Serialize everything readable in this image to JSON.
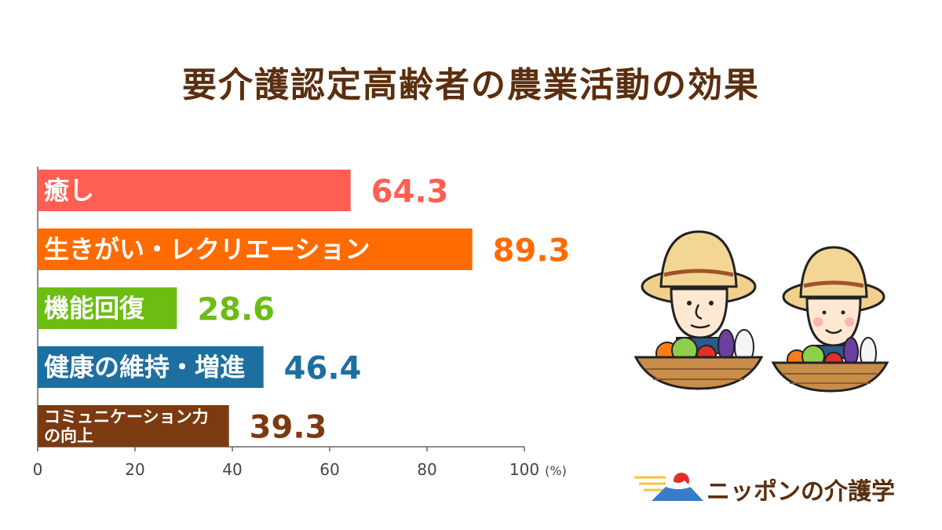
{
  "title": "要介護認定高齢者の農業活動の効果",
  "chart_data": {
    "type": "bar",
    "orientation": "horizontal",
    "categories": [
      [
        "癒し"
      ],
      [
        "生きがい・レクリエーション"
      ],
      [
        "機能回復"
      ],
      [
        "健康の維持・増進"
      ],
      [
        "コミュニケーション力",
        "の向上"
      ]
    ],
    "values": [
      64.3,
      89.3,
      28.6,
      46.4,
      39.3
    ],
    "value_labels": [
      "64.3",
      "89.3",
      "28.6",
      "46.4",
      "39.3"
    ],
    "colors": [
      "#ff5f52",
      "#ff6b00",
      "#6cbd12",
      "#1d6fa0",
      "#7b3a12"
    ],
    "xlim": [
      0,
      100
    ],
    "xticks": [
      "0",
      "20",
      "40",
      "60",
      "80",
      "100"
    ],
    "xunit": "(%)"
  },
  "logo": {
    "text": "ニッポンの介護学"
  }
}
